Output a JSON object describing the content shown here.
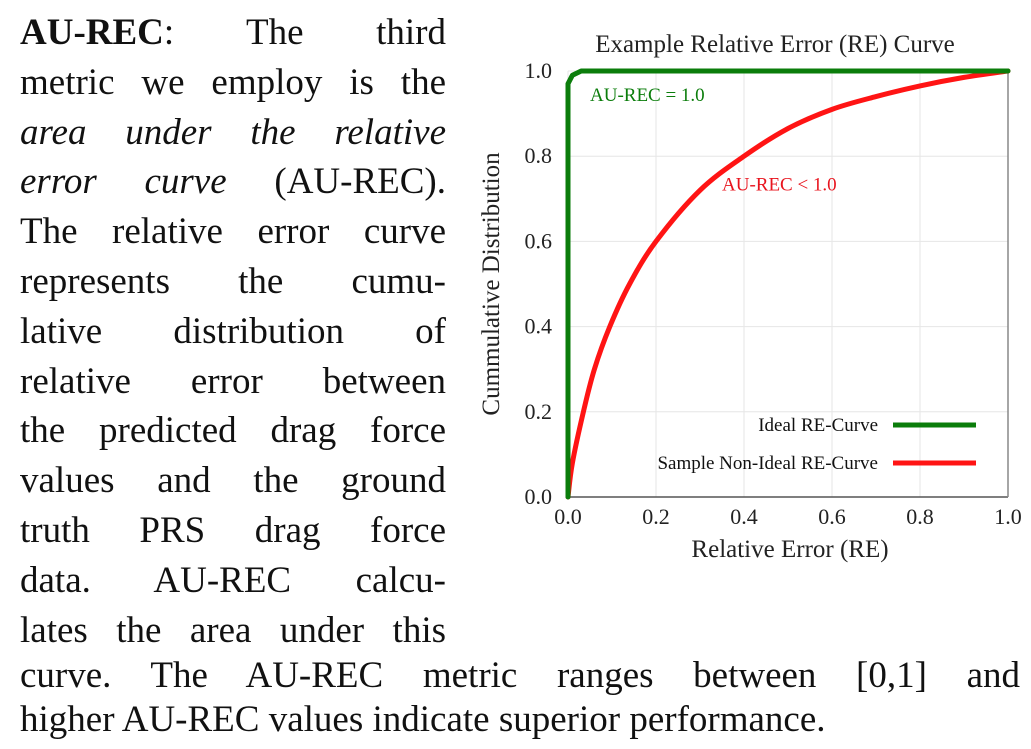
{
  "text": {
    "left_column_lines": [
      {
        "bold": "AU-REC",
        "rest": ":  The  third"
      },
      {
        "plain": "metric we employ is the"
      },
      {
        "italic": "area  under  the  relative"
      },
      {
        "italic": "error curve",
        "rest": " (AU-REC)."
      },
      {
        "plain": "The relative error curve"
      },
      {
        "plain": "represents  the  cumu-"
      },
      {
        "plain": "lative  distribution  of"
      },
      {
        "plain": "relative  error  between"
      },
      {
        "plain": "the predicted drag force"
      },
      {
        "plain": "values  and  the  ground"
      },
      {
        "plain": "truth  PRS  drag  force"
      },
      {
        "plain": "data.   AU-REC  calcu-"
      },
      {
        "plain": "lates the area under this"
      }
    ],
    "bottom_lines": [
      "curve.  The AU-REC metric ranges between [0,1] and",
      "higher AU-REC values indicate superior performance."
    ]
  },
  "chart_data": {
    "type": "line",
    "title": "Example Relative Error (RE) Curve",
    "xlabel": "Relative Error (RE)",
    "ylabel": "Cummulative Distribution",
    "xlim": [
      0.0,
      1.0
    ],
    "ylim": [
      0.0,
      1.0
    ],
    "xticks": [
      "0.0",
      "0.2",
      "0.4",
      "0.6",
      "0.8",
      "1.0"
    ],
    "yticks": [
      "0.0",
      "0.2",
      "0.4",
      "0.6",
      "0.8",
      "1.0"
    ],
    "grid": true,
    "legend_position": "lower right",
    "series": [
      {
        "name": "Ideal RE-Curve",
        "color": "#0b7d0b",
        "x": [
          0.0,
          0.0,
          0.01,
          0.03,
          1.0
        ],
        "y": [
          0.0,
          0.97,
          0.99,
          1.0,
          1.0
        ]
      },
      {
        "name": "Sample Non-Ideal RE-Curve",
        "color": "#ff1414",
        "x": [
          0.0,
          0.01,
          0.035,
          0.06,
          0.095,
          0.14,
          0.2,
          0.3,
          0.4,
          0.5,
          0.6,
          0.7,
          0.8,
          0.9,
          1.0
        ],
        "y": [
          0.0,
          0.08,
          0.2,
          0.3,
          0.4,
          0.5,
          0.6,
          0.72,
          0.8,
          0.865,
          0.91,
          0.94,
          0.965,
          0.985,
          1.0
        ]
      }
    ],
    "annotations": [
      {
        "text": "AU-REC = 1.0",
        "color": "#0b7d0b",
        "x": 0.05,
        "y": 0.93
      },
      {
        "text": "AU-REC < 1.0",
        "color": "#e8141e",
        "x": 0.35,
        "y": 0.72
      }
    ]
  }
}
